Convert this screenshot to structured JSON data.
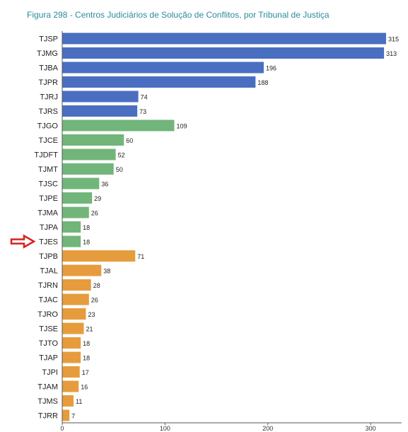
{
  "chart_data": {
    "type": "bar",
    "orientation": "horizontal",
    "title": "Figura 298 - Centros Judiciários de Solução de Conflitos, por Tribunal de Justiça",
    "xlabel": "",
    "ylabel": "",
    "xlim": [
      0,
      330
    ],
    "xticks": [
      0,
      100,
      200,
      300
    ],
    "grid": false,
    "legend": "none",
    "categories": [
      "TJSP",
      "TJMG",
      "TJBA",
      "TJPR",
      "TJRJ",
      "TJRS",
      "TJGO",
      "TJCE",
      "TJDFT",
      "TJMT",
      "TJSC",
      "TJPE",
      "TJMA",
      "TJPA",
      "TJES",
      "TJPB",
      "TJAL",
      "TJRN",
      "TJAC",
      "TJRO",
      "TJSE",
      "TJTO",
      "TJAP",
      "TJPI",
      "TJAM",
      "TJMS",
      "TJRR"
    ],
    "values": [
      315,
      313,
      196,
      188,
      74,
      73,
      109,
      60,
      52,
      50,
      36,
      29,
      26,
      18,
      18,
      71,
      38,
      28,
      26,
      23,
      21,
      18,
      18,
      17,
      16,
      11,
      7
    ],
    "colors": [
      "#4a6fc1",
      "#4a6fc1",
      "#4a6fc1",
      "#4a6fc1",
      "#4a6fc1",
      "#4a6fc1",
      "#72b57a",
      "#72b57a",
      "#72b57a",
      "#72b57a",
      "#72b57a",
      "#72b57a",
      "#72b57a",
      "#72b57a",
      "#72b57a",
      "#e69c3c",
      "#e69c3c",
      "#e69c3c",
      "#e69c3c",
      "#e69c3c",
      "#e69c3c",
      "#e69c3c",
      "#e69c3c",
      "#e69c3c",
      "#e69c3c",
      "#e69c3c",
      "#e69c3c"
    ],
    "annotation": {
      "type": "arrow",
      "points_to": "TJES",
      "color": "#d62020"
    }
  }
}
